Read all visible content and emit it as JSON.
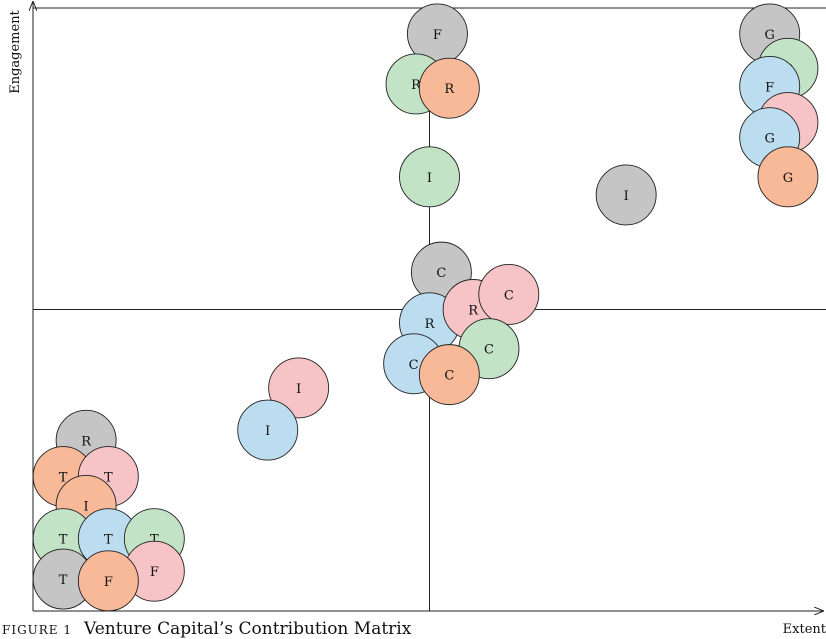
{
  "colors": {
    "blue": "#bcdcf0",
    "red": "#f6c3c6",
    "green": "#c2e3c6",
    "orange": "#f7b998",
    "gray": "#c5c5c5",
    "stroke": "#222222"
  },
  "caption": {
    "figure": "FIGURE 1",
    "text": "Venture Capital’s Contribution Matrix"
  },
  "chart_data": {
    "type": "scatter",
    "title": "Venture Capital’s Contribution Matrix",
    "xlabel": "Extent",
    "ylabel": "Engagement",
    "xlim": [
      0,
      10
    ],
    "ylim": [
      0,
      10
    ],
    "dividers": {
      "x": 5,
      "y": 5
    },
    "grid": false,
    "points": [
      {
        "label": "F",
        "color": "gray",
        "x": 5.1,
        "y": 9.57
      },
      {
        "label": "R",
        "color": "green",
        "x": 4.83,
        "y": 8.74
      },
      {
        "label": "R",
        "color": "orange",
        "x": 5.25,
        "y": 8.67
      },
      {
        "label": "I",
        "color": "green",
        "x": 5.0,
        "y": 7.2
      },
      {
        "label": "G",
        "color": "gray",
        "x": 9.29,
        "y": 9.57
      },
      {
        "label": "G",
        "color": "green",
        "x": 9.52,
        "y": 9.0
      },
      {
        "label": "F",
        "color": "blue",
        "x": 9.29,
        "y": 8.7
      },
      {
        "label": "G",
        "color": "red",
        "x": 9.52,
        "y": 8.1
      },
      {
        "label": "G",
        "color": "blue",
        "x": 9.29,
        "y": 7.85
      },
      {
        "label": "G",
        "color": "orange",
        "x": 9.52,
        "y": 7.2
      },
      {
        "label": "I",
        "color": "gray",
        "x": 7.48,
        "y": 6.9
      },
      {
        "label": "C",
        "color": "gray",
        "x": 5.15,
        "y": 5.62
      },
      {
        "label": "R",
        "color": "blue",
        "x": 5.0,
        "y": 4.78
      },
      {
        "label": "R",
        "color": "red",
        "x": 5.55,
        "y": 5.0
      },
      {
        "label": "C",
        "color": "red",
        "x": 6.0,
        "y": 5.25
      },
      {
        "label": "C",
        "color": "green",
        "x": 5.75,
        "y": 4.35
      },
      {
        "label": "C",
        "color": "blue",
        "x": 4.8,
        "y": 4.1
      },
      {
        "label": "C",
        "color": "orange",
        "x": 5.25,
        "y": 3.92
      },
      {
        "label": "I",
        "color": "red",
        "x": 3.35,
        "y": 3.7
      },
      {
        "label": "I",
        "color": "blue",
        "x": 2.96,
        "y": 3.0
      },
      {
        "label": "R",
        "color": "gray",
        "x": 0.67,
        "y": 2.83
      },
      {
        "label": "T",
        "color": "orange",
        "x": 0.38,
        "y": 2.23
      },
      {
        "label": "T",
        "color": "red",
        "x": 0.95,
        "y": 2.23
      },
      {
        "label": "I",
        "color": "orange",
        "x": 0.67,
        "y": 1.75
      },
      {
        "label": "T",
        "color": "green",
        "x": 0.38,
        "y": 1.2
      },
      {
        "label": "T",
        "color": "blue",
        "x": 0.95,
        "y": 1.2
      },
      {
        "label": "T",
        "color": "green",
        "x": 1.53,
        "y": 1.2
      },
      {
        "label": "F",
        "color": "red",
        "x": 1.53,
        "y": 0.66
      },
      {
        "label": "T",
        "color": "gray",
        "x": 0.38,
        "y": 0.53
      },
      {
        "label": "F",
        "color": "orange",
        "x": 0.95,
        "y": 0.5
      }
    ]
  }
}
